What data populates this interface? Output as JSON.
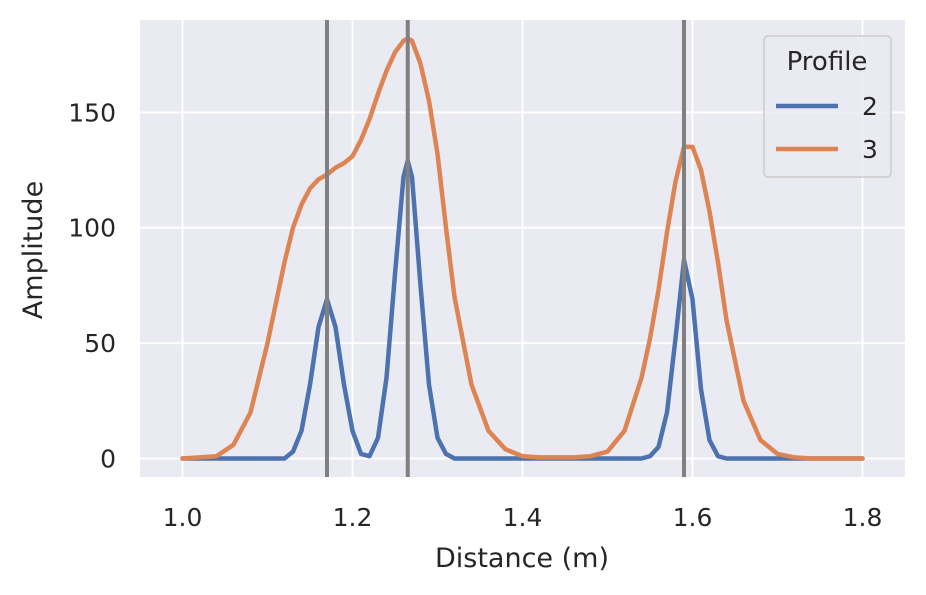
{
  "chart_data": {
    "type": "line",
    "xlabel": "Distance (m)",
    "ylabel": "Amplitude",
    "xlim": [
      0.95,
      1.85
    ],
    "ylim": [
      -8,
      190
    ],
    "xticks": [
      1.0,
      1.2,
      1.4,
      1.6,
      1.8
    ],
    "xtick_labels": [
      "1.0",
      "1.2",
      "1.4",
      "1.6",
      "1.8"
    ],
    "yticks": [
      0,
      50,
      100,
      150
    ],
    "ytick_labels": [
      "0",
      "50",
      "100",
      "150"
    ],
    "grid": true,
    "vertical_lines": [
      1.17,
      1.265,
      1.59
    ],
    "vertical_line_color": "#808080",
    "background_color": "#eaeaf2",
    "legend": {
      "title": "Profile",
      "position": "top-right"
    },
    "x": [
      1.0,
      1.02,
      1.04,
      1.06,
      1.08,
      1.1,
      1.12,
      1.13,
      1.14,
      1.15,
      1.16,
      1.17,
      1.18,
      1.19,
      1.2,
      1.21,
      1.22,
      1.23,
      1.24,
      1.25,
      1.26,
      1.265,
      1.27,
      1.28,
      1.29,
      1.3,
      1.31,
      1.32,
      1.34,
      1.36,
      1.38,
      1.4,
      1.42,
      1.44,
      1.46,
      1.48,
      1.5,
      1.52,
      1.54,
      1.55,
      1.56,
      1.57,
      1.58,
      1.59,
      1.6,
      1.61,
      1.62,
      1.63,
      1.64,
      1.66,
      1.68,
      1.7,
      1.72,
      1.74,
      1.76,
      1.78,
      1.8
    ],
    "series": [
      {
        "name": "2",
        "color": "#4c72b0",
        "values": [
          0,
          0,
          0,
          0,
          0,
          0,
          0,
          3,
          12,
          32,
          57,
          69,
          57,
          32,
          12,
          2,
          1,
          9,
          35,
          80,
          122,
          129,
          122,
          75,
          32,
          9,
          2,
          0,
          0,
          0,
          0,
          0,
          0,
          0,
          0,
          0,
          0,
          0,
          0,
          1,
          5,
          20,
          52,
          86,
          69,
          30,
          8,
          1,
          0,
          0,
          0,
          0,
          0,
          0,
          0,
          0,
          0
        ]
      },
      {
        "name": "3",
        "color": "#dd8452",
        "values": [
          0,
          0.5,
          1,
          6,
          20,
          50,
          85,
          100,
          110,
          117,
          121,
          123,
          126,
          128,
          131,
          138,
          147,
          158,
          168,
          176,
          181,
          182,
          181,
          171,
          155,
          132,
          100,
          70,
          32,
          12,
          4,
          1,
          0.5,
          0.5,
          0.5,
          1,
          3,
          12,
          35,
          52,
          73,
          98,
          120,
          135,
          135,
          125,
          107,
          85,
          60,
          25,
          8,
          2,
          0.5,
          0,
          0,
          0,
          0
        ]
      }
    ]
  }
}
